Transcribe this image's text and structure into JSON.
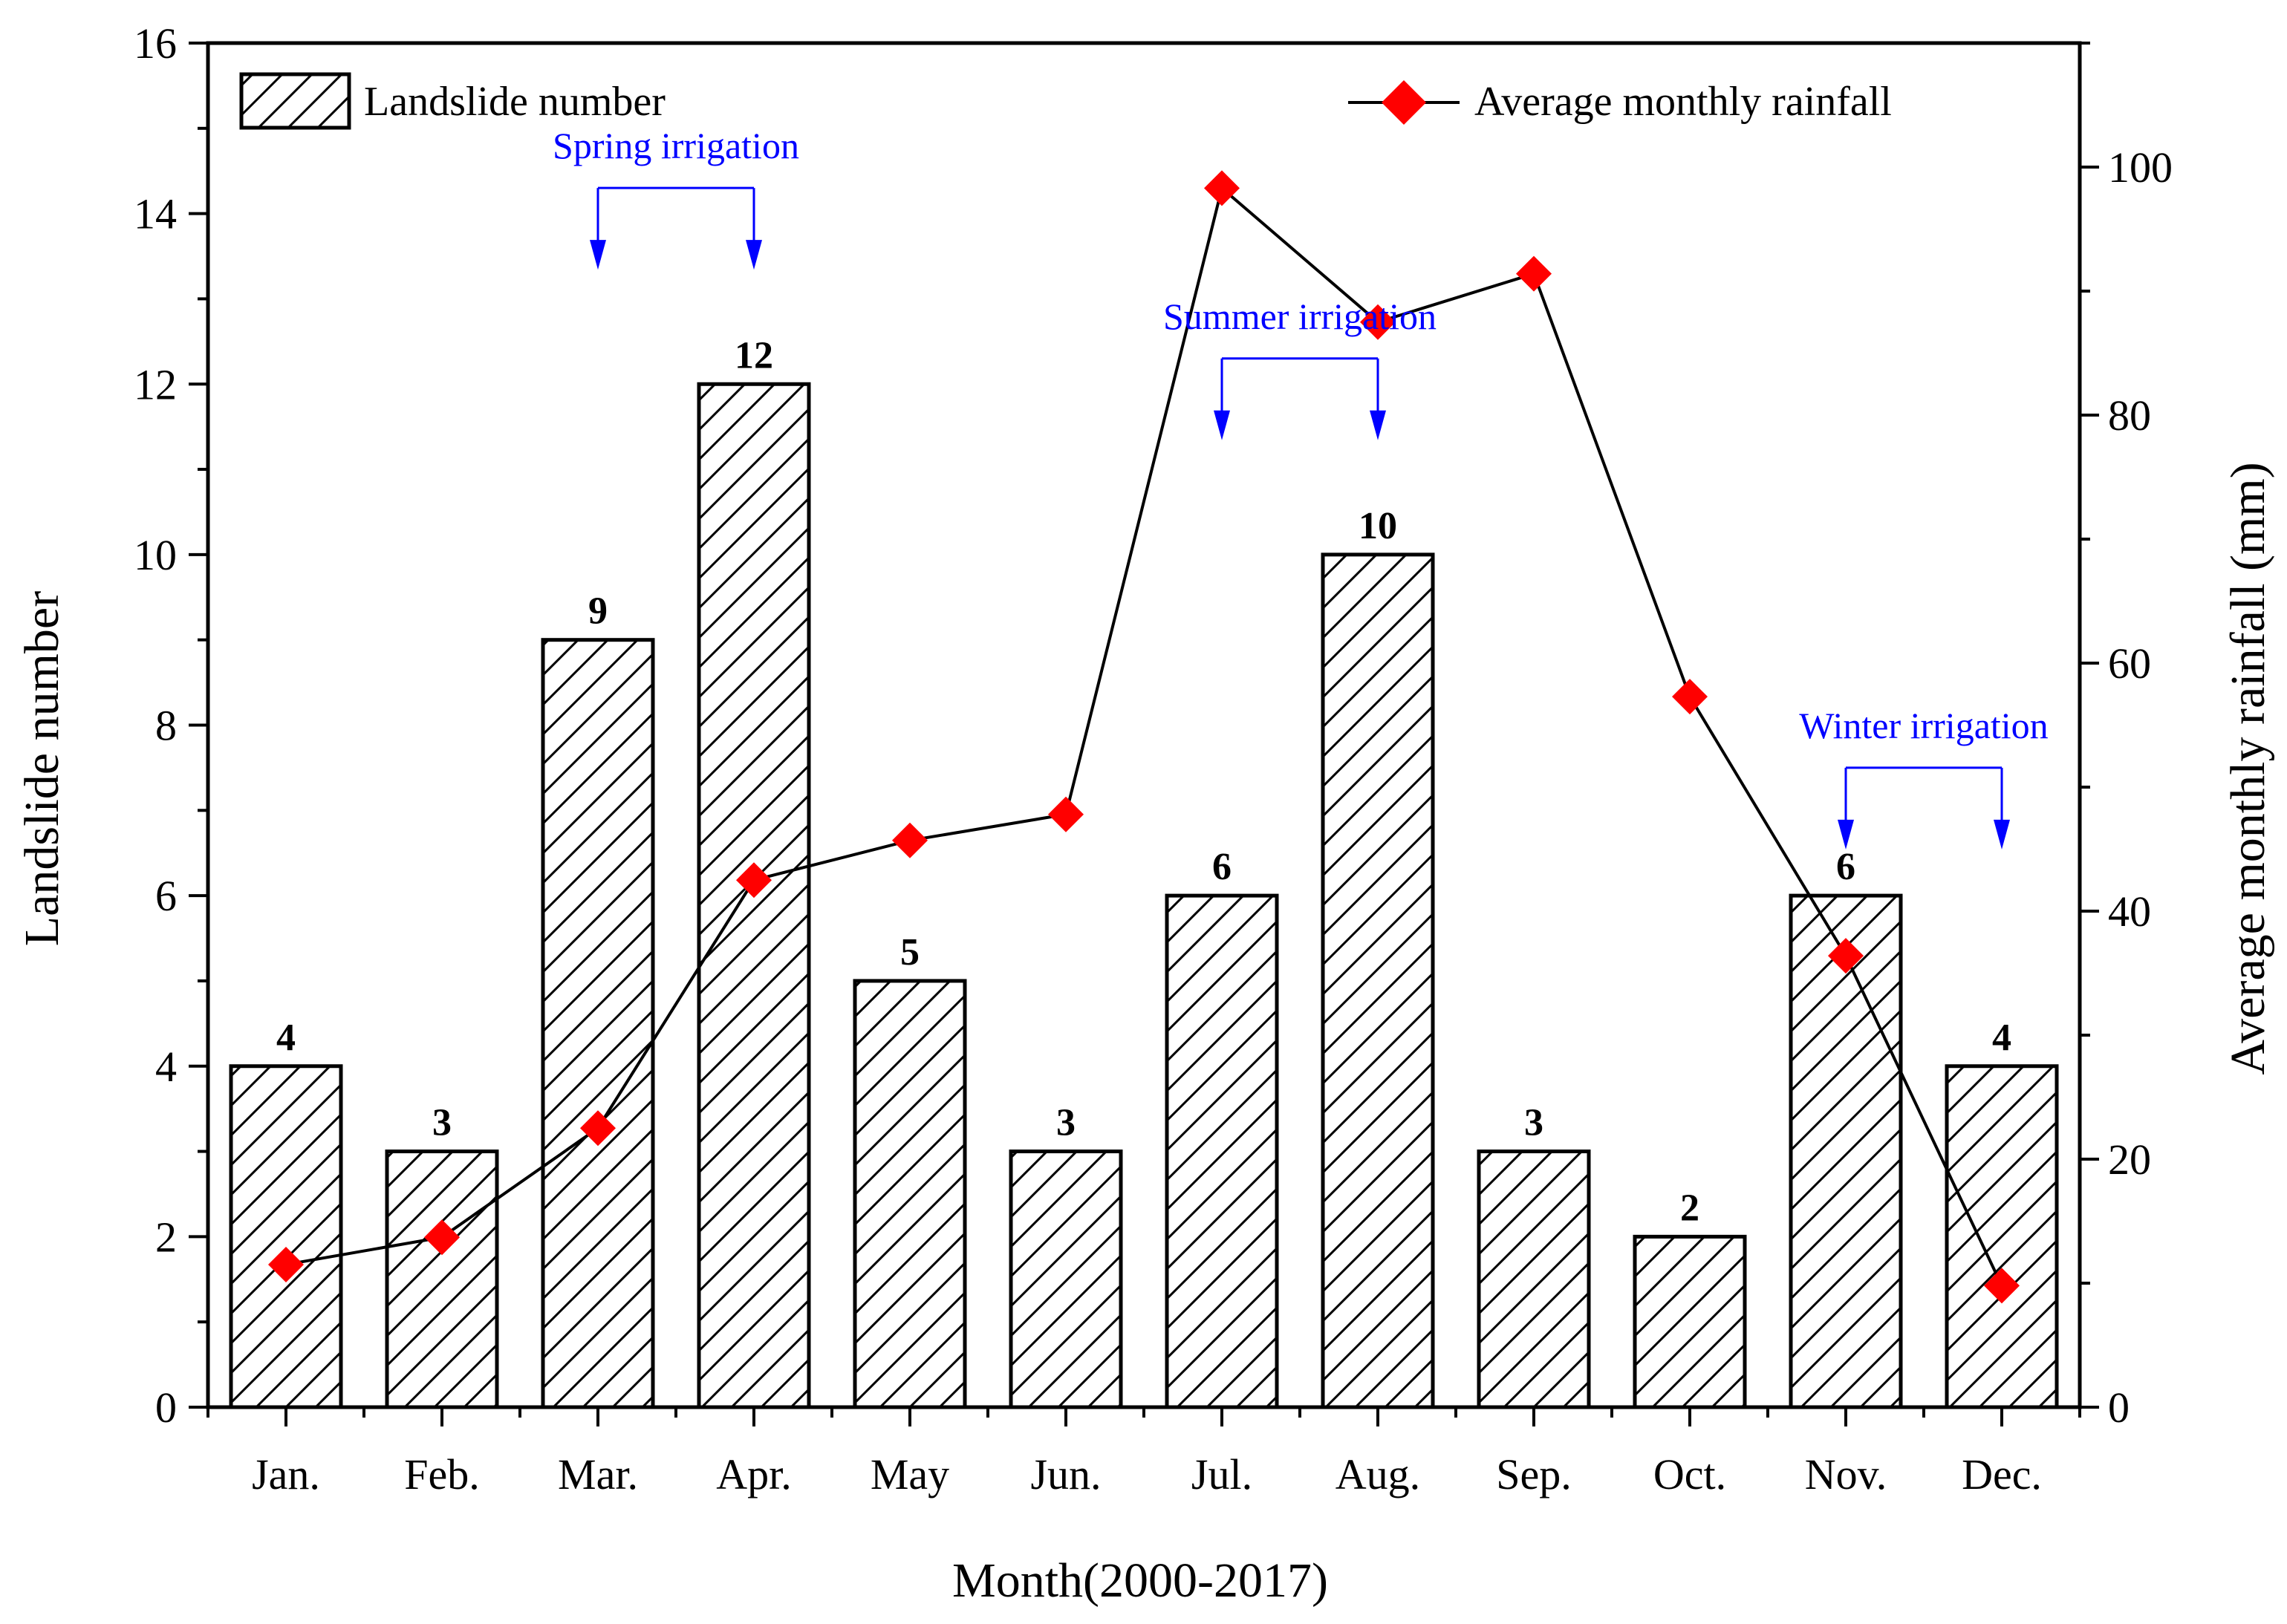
{
  "chart_data": {
    "type": "bar+line",
    "xlabel": "Month(2000-2017)",
    "ylabel": "Landslide number",
    "y2label": "Average monthly rainfall (mm)",
    "categories": [
      "Jan.",
      "Feb.",
      "Mar.",
      "Apr.",
      "May",
      "Jun.",
      "Jul.",
      "Aug.",
      "Sep.",
      "Oct.",
      "Nov.",
      "Dec."
    ],
    "ylim": [
      0,
      16
    ],
    "y_ticks": [
      0,
      2,
      4,
      6,
      8,
      10,
      12,
      14,
      16
    ],
    "y2lim": [
      0,
      110
    ],
    "y2_ticks": [
      0,
      20,
      40,
      60,
      80,
      100
    ],
    "bar_series": {
      "name": "Landslide number",
      "values": [
        4,
        3,
        9,
        12,
        5,
        3,
        6,
        10,
        3,
        2,
        6,
        4
      ],
      "pattern": "diagonal-hatch"
    },
    "line_series": {
      "name": "Average monthly rainfall",
      "axis": "right",
      "values": [
        11.5,
        13.7,
        22.5,
        42.5,
        45.7,
        47.8,
        98.3,
        87.5,
        91.4,
        57.3,
        36.4,
        9.8
      ],
      "marker": "diamond",
      "marker_color": "#ff0000",
      "line_color": "#000000"
    },
    "legend": {
      "placement": "top",
      "bar_entry": "Landslide number",
      "line_entry": "Average monthly rainfall"
    },
    "annotations": [
      {
        "text": "Spring irrigation",
        "from_month": "Mar.",
        "to_month": "Apr.",
        "level": 14.3
      },
      {
        "text": "Summer irrigation",
        "from_month": "Jul.",
        "to_month": "Aug.",
        "level": 12.3
      },
      {
        "text": "Winter irrigation",
        "from_month": "Nov.",
        "to_month": "Dec.",
        "level": 7.5
      }
    ],
    "annotation_color": "#0000ff"
  }
}
